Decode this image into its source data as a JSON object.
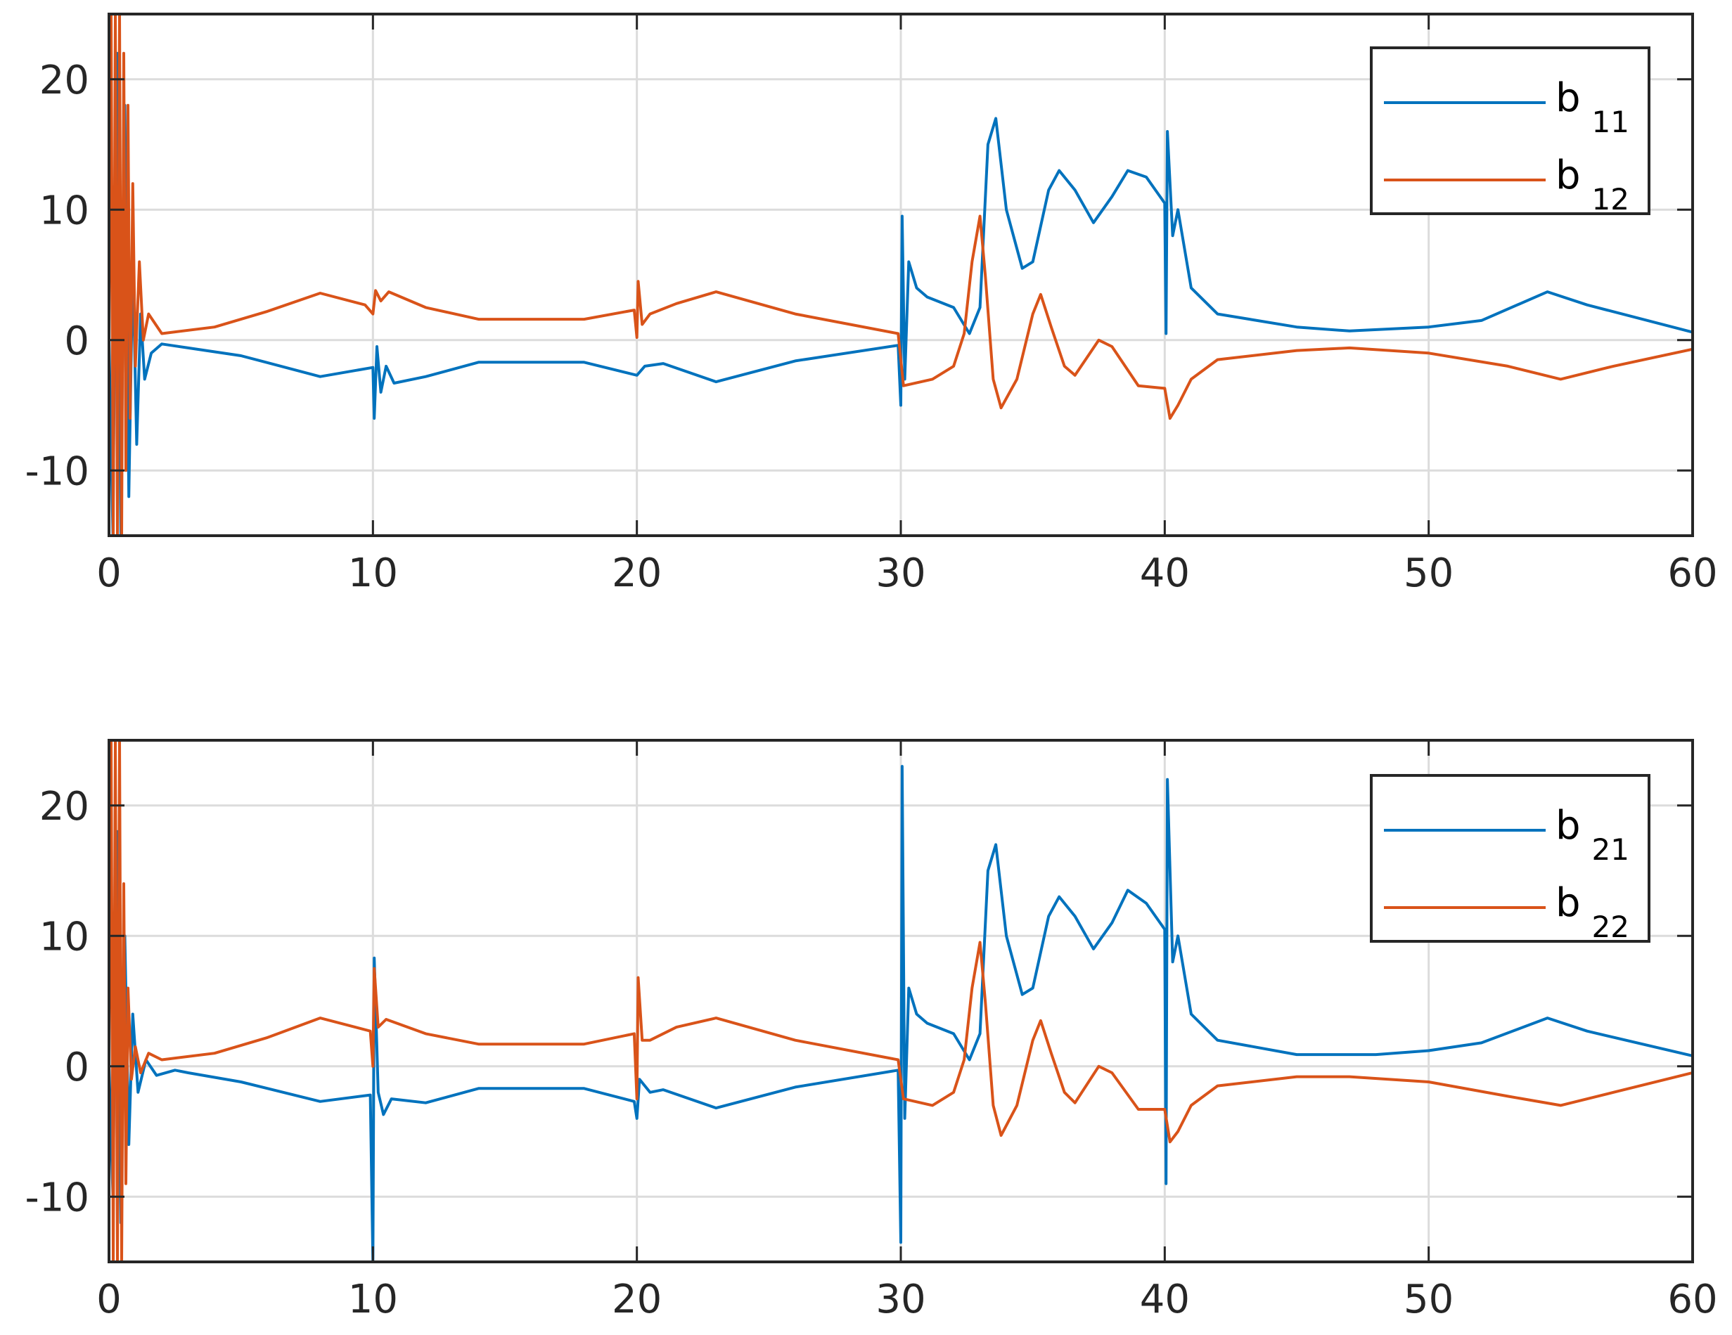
{
  "colors": {
    "series1": "#0072BD",
    "series2": "#D95319",
    "grid": "#dcdcdc",
    "axis": "#262626"
  },
  "chart_data": [
    {
      "type": "line",
      "grid": true,
      "legend_position": "top-right",
      "xlim": [
        0,
        60
      ],
      "ylim": [
        -15,
        25
      ],
      "xticks": [
        0,
        10,
        20,
        30,
        40,
        50,
        60
      ],
      "yticks": [
        -10,
        0,
        10,
        20
      ],
      "xtick_labels": [
        "0",
        "10",
        "20",
        "30",
        "40",
        "50",
        "60"
      ],
      "ytick_labels": [
        "-10",
        "0",
        "10",
        "20"
      ],
      "series": [
        {
          "name": "b 11",
          "base": "b",
          "sub": "11",
          "color": "#0072BD",
          "points": [
            [
              0,
              0
            ],
            [
              0.15,
              -15
            ],
            [
              0.3,
              22
            ],
            [
              0.45,
              -15
            ],
            [
              0.6,
              18
            ],
            [
              0.75,
              -12
            ],
            [
              0.9,
              6
            ],
            [
              1.05,
              -8
            ],
            [
              1.2,
              2
            ],
            [
              1.35,
              -3
            ],
            [
              1.6,
              -1
            ],
            [
              2,
              -0.3
            ],
            [
              3,
              -0.6
            ],
            [
              5,
              -1.2
            ],
            [
              8,
              -2.8
            ],
            [
              10,
              -2.1
            ],
            [
              10.05,
              -6
            ],
            [
              10.15,
              -0.5
            ],
            [
              10.3,
              -4
            ],
            [
              10.5,
              -2
            ],
            [
              10.8,
              -3.3
            ],
            [
              12,
              -2.8
            ],
            [
              14,
              -1.7
            ],
            [
              18,
              -1.7
            ],
            [
              20,
              -2.7
            ],
            [
              20.3,
              -2
            ],
            [
              21,
              -1.8
            ],
            [
              23,
              -3.2
            ],
            [
              26,
              -1.6
            ],
            [
              29.9,
              -0.4
            ],
            [
              30,
              -5
            ],
            [
              30.05,
              9.5
            ],
            [
              30.15,
              -3
            ],
            [
              30.3,
              6
            ],
            [
              30.6,
              4
            ],
            [
              31,
              3.3
            ],
            [
              32,
              2.5
            ],
            [
              32.6,
              0.5
            ],
            [
              33,
              2.5
            ],
            [
              33.3,
              15
            ],
            [
              33.6,
              17
            ],
            [
              34,
              10
            ],
            [
              34.6,
              5.5
            ],
            [
              35,
              6
            ],
            [
              35.6,
              11.5
            ],
            [
              36,
              13
            ],
            [
              36.6,
              11.5
            ],
            [
              37.3,
              9
            ],
            [
              38,
              11
            ],
            [
              38.6,
              13
            ],
            [
              39.3,
              12.5
            ],
            [
              40,
              10.5
            ],
            [
              40.05,
              0.5
            ],
            [
              40.1,
              16
            ],
            [
              40.3,
              8
            ],
            [
              40.5,
              10
            ],
            [
              41,
              4
            ],
            [
              42,
              2
            ],
            [
              45,
              1
            ],
            [
              47,
              0.7
            ],
            [
              50,
              1
            ],
            [
              52,
              1.5
            ],
            [
              54.5,
              3.7
            ],
            [
              56,
              2.7
            ],
            [
              60,
              0.6
            ]
          ]
        },
        {
          "name": "b 12",
          "base": "b",
          "sub": "12",
          "color": "#D95319",
          "points": [
            [
              0,
              0
            ],
            [
              0.08,
              25
            ],
            [
              0.16,
              -15
            ],
            [
              0.24,
              25
            ],
            [
              0.32,
              -15
            ],
            [
              0.4,
              25
            ],
            [
              0.48,
              -15
            ],
            [
              0.56,
              22
            ],
            [
              0.64,
              -10
            ],
            [
              0.72,
              18
            ],
            [
              0.8,
              -6
            ],
            [
              0.9,
              12
            ],
            [
              1.0,
              -2
            ],
            [
              1.15,
              6
            ],
            [
              1.3,
              0
            ],
            [
              1.5,
              2
            ],
            [
              2,
              0.5
            ],
            [
              4,
              1
            ],
            [
              6,
              2.2
            ],
            [
              8,
              3.6
            ],
            [
              9.7,
              2.7
            ],
            [
              10,
              2
            ],
            [
              10.1,
              3.8
            ],
            [
              10.3,
              3
            ],
            [
              10.6,
              3.7
            ],
            [
              12,
              2.5
            ],
            [
              14,
              1.6
            ],
            [
              18,
              1.6
            ],
            [
              19.9,
              2.3
            ],
            [
              20,
              0.2
            ],
            [
              20.05,
              4.5
            ],
            [
              20.2,
              1.2
            ],
            [
              20.5,
              2
            ],
            [
              21.5,
              2.8
            ],
            [
              23,
              3.7
            ],
            [
              26,
              2
            ],
            [
              29.9,
              0.5
            ],
            [
              30.1,
              -3.5
            ],
            [
              31.2,
              -3
            ],
            [
              32,
              -2
            ],
            [
              32.4,
              0.5
            ],
            [
              32.7,
              6
            ],
            [
              33,
              9.5
            ],
            [
              33.2,
              5
            ],
            [
              33.5,
              -3
            ],
            [
              33.8,
              -5.2
            ],
            [
              34.4,
              -3
            ],
            [
              35,
              2
            ],
            [
              35.3,
              3.5
            ],
            [
              35.7,
              1
            ],
            [
              36.2,
              -2
            ],
            [
              36.6,
              -2.7
            ],
            [
              37.5,
              0
            ],
            [
              38,
              -0.5
            ],
            [
              39,
              -3.5
            ],
            [
              40,
              -3.7
            ],
            [
              40.2,
              -6
            ],
            [
              40.5,
              -5
            ],
            [
              41,
              -3
            ],
            [
              42,
              -1.5
            ],
            [
              45,
              -0.8
            ],
            [
              47,
              -0.6
            ],
            [
              50,
              -1
            ],
            [
              53,
              -2
            ],
            [
              55,
              -3
            ],
            [
              57,
              -2
            ],
            [
              60,
              -0.7
            ]
          ]
        }
      ]
    },
    {
      "type": "line",
      "grid": true,
      "legend_position": "top-right",
      "xlim": [
        0,
        60
      ],
      "ylim": [
        -15,
        25
      ],
      "xticks": [
        0,
        10,
        20,
        30,
        40,
        50,
        60
      ],
      "yticks": [
        -10,
        0,
        10,
        20
      ],
      "xtick_labels": [
        "0",
        "10",
        "20",
        "30",
        "40",
        "50",
        "60"
      ],
      "ytick_labels": [
        "-10",
        "0",
        "10",
        "20"
      ],
      "series": [
        {
          "name": "b 21",
          "base": "b",
          "sub": "21",
          "color": "#0072BD",
          "points": [
            [
              0,
              0
            ],
            [
              0.15,
              -10
            ],
            [
              0.3,
              18
            ],
            [
              0.45,
              -12
            ],
            [
              0.6,
              10
            ],
            [
              0.75,
              -6
            ],
            [
              0.9,
              4
            ],
            [
              1.1,
              -2
            ],
            [
              1.4,
              0.5
            ],
            [
              1.8,
              -0.7
            ],
            [
              2.5,
              -0.3
            ],
            [
              3,
              -0.5
            ],
            [
              5,
              -1.2
            ],
            [
              8,
              -2.7
            ],
            [
              9.9,
              -2.2
            ],
            [
              10,
              -15
            ],
            [
              10.05,
              8.3
            ],
            [
              10.2,
              -2
            ],
            [
              10.4,
              -3.7
            ],
            [
              10.7,
              -2.5
            ],
            [
              12,
              -2.8
            ],
            [
              14,
              -1.7
            ],
            [
              18,
              -1.7
            ],
            [
              19.9,
              -2.7
            ],
            [
              20,
              -4
            ],
            [
              20.1,
              -1
            ],
            [
              20.5,
              -2
            ],
            [
              21,
              -1.8
            ],
            [
              23,
              -3.2
            ],
            [
              26,
              -1.6
            ],
            [
              29.9,
              -0.3
            ],
            [
              30,
              -13.5
            ],
            [
              30.05,
              23
            ],
            [
              30.15,
              -4
            ],
            [
              30.3,
              6
            ],
            [
              30.6,
              4
            ],
            [
              31,
              3.3
            ],
            [
              32,
              2.5
            ],
            [
              32.6,
              0.5
            ],
            [
              33,
              2.5
            ],
            [
              33.3,
              15
            ],
            [
              33.6,
              17
            ],
            [
              34,
              10
            ],
            [
              34.6,
              5.5
            ],
            [
              35,
              6
            ],
            [
              35.6,
              11.5
            ],
            [
              36,
              13
            ],
            [
              36.6,
              11.5
            ],
            [
              37.3,
              9
            ],
            [
              38,
              11
            ],
            [
              38.6,
              13.5
            ],
            [
              39.3,
              12.5
            ],
            [
              40,
              10.5
            ],
            [
              40.05,
              -9
            ],
            [
              40.1,
              22
            ],
            [
              40.3,
              8
            ],
            [
              40.5,
              10
            ],
            [
              41,
              4
            ],
            [
              42,
              2
            ],
            [
              45,
              0.9
            ],
            [
              48,
              0.9
            ],
            [
              50,
              1.2
            ],
            [
              52,
              1.8
            ],
            [
              54.5,
              3.7
            ],
            [
              56,
              2.7
            ],
            [
              60,
              0.8
            ]
          ]
        },
        {
          "name": "b 22",
          "base": "b",
          "sub": "22",
          "color": "#D95319",
          "points": [
            [
              0,
              0
            ],
            [
              0.08,
              25
            ],
            [
              0.16,
              -15
            ],
            [
              0.24,
              25
            ],
            [
              0.32,
              -15
            ],
            [
              0.4,
              25
            ],
            [
              0.48,
              -15
            ],
            [
              0.56,
              14
            ],
            [
              0.64,
              -9
            ],
            [
              0.72,
              6
            ],
            [
              0.85,
              -1
            ],
            [
              1.0,
              1.5
            ],
            [
              1.2,
              -0.5
            ],
            [
              1.5,
              1
            ],
            [
              2,
              0.5
            ],
            [
              4,
              1
            ],
            [
              6,
              2.2
            ],
            [
              8,
              3.7
            ],
            [
              9.9,
              2.7
            ],
            [
              10,
              0
            ],
            [
              10.05,
              7.5
            ],
            [
              10.2,
              3
            ],
            [
              10.5,
              3.6
            ],
            [
              12,
              2.5
            ],
            [
              14,
              1.7
            ],
            [
              18,
              1.7
            ],
            [
              19.9,
              2.5
            ],
            [
              20,
              -2.5
            ],
            [
              20.05,
              6.8
            ],
            [
              20.2,
              2
            ],
            [
              20.5,
              2
            ],
            [
              21.5,
              3
            ],
            [
              23,
              3.7
            ],
            [
              26,
              2
            ],
            [
              29.9,
              0.5
            ],
            [
              30.1,
              -2.5
            ],
            [
              31.2,
              -3
            ],
            [
              32,
              -2
            ],
            [
              32.4,
              0.5
            ],
            [
              32.7,
              6
            ],
            [
              33,
              9.5
            ],
            [
              33.2,
              5
            ],
            [
              33.5,
              -3
            ],
            [
              33.8,
              -5.3
            ],
            [
              34.4,
              -3
            ],
            [
              35,
              2
            ],
            [
              35.3,
              3.5
            ],
            [
              35.7,
              1
            ],
            [
              36.2,
              -2
            ],
            [
              36.6,
              -2.8
            ],
            [
              37.5,
              0
            ],
            [
              38,
              -0.5
            ],
            [
              39,
              -3.3
            ],
            [
              40,
              -3.3
            ],
            [
              40.2,
              -5.8
            ],
            [
              40.5,
              -5
            ],
            [
              41,
              -3
            ],
            [
              42,
              -1.5
            ],
            [
              45,
              -0.8
            ],
            [
              47,
              -0.8
            ],
            [
              50,
              -1.2
            ],
            [
              53,
              -2.3
            ],
            [
              55,
              -3
            ],
            [
              57,
              -2
            ],
            [
              60,
              -0.5
            ]
          ]
        }
      ]
    }
  ]
}
